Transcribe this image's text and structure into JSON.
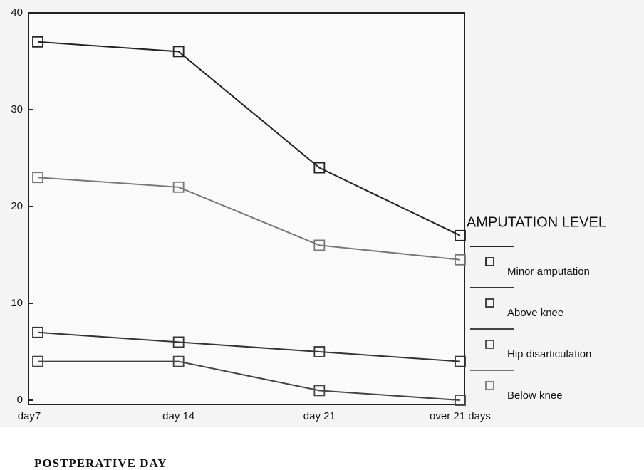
{
  "chart_data": {
    "type": "line",
    "categories": [
      "day7",
      "day 14",
      "day 21",
      "over 21 days"
    ],
    "series": [
      {
        "name": "Minor amputation",
        "color": "#222222",
        "values": [
          37,
          36,
          24,
          17
        ]
      },
      {
        "name": "Above knee",
        "color": "#333333",
        "values": [
          7,
          6,
          5,
          4
        ]
      },
      {
        "name": "Hip disarticulation",
        "color": "#444444",
        "values": [
          4,
          4,
          1,
          0
        ]
      },
      {
        "name": "Below knee",
        "color": "#777777",
        "values": [
          23,
          22,
          16,
          14.5
        ]
      }
    ],
    "ylim": [
      0,
      40
    ],
    "yticks": [
      0,
      10,
      20,
      30,
      40
    ],
    "legend_title": "AMPUTATION LEVEL",
    "xlabel": "POSTPERATIVE DAY"
  }
}
